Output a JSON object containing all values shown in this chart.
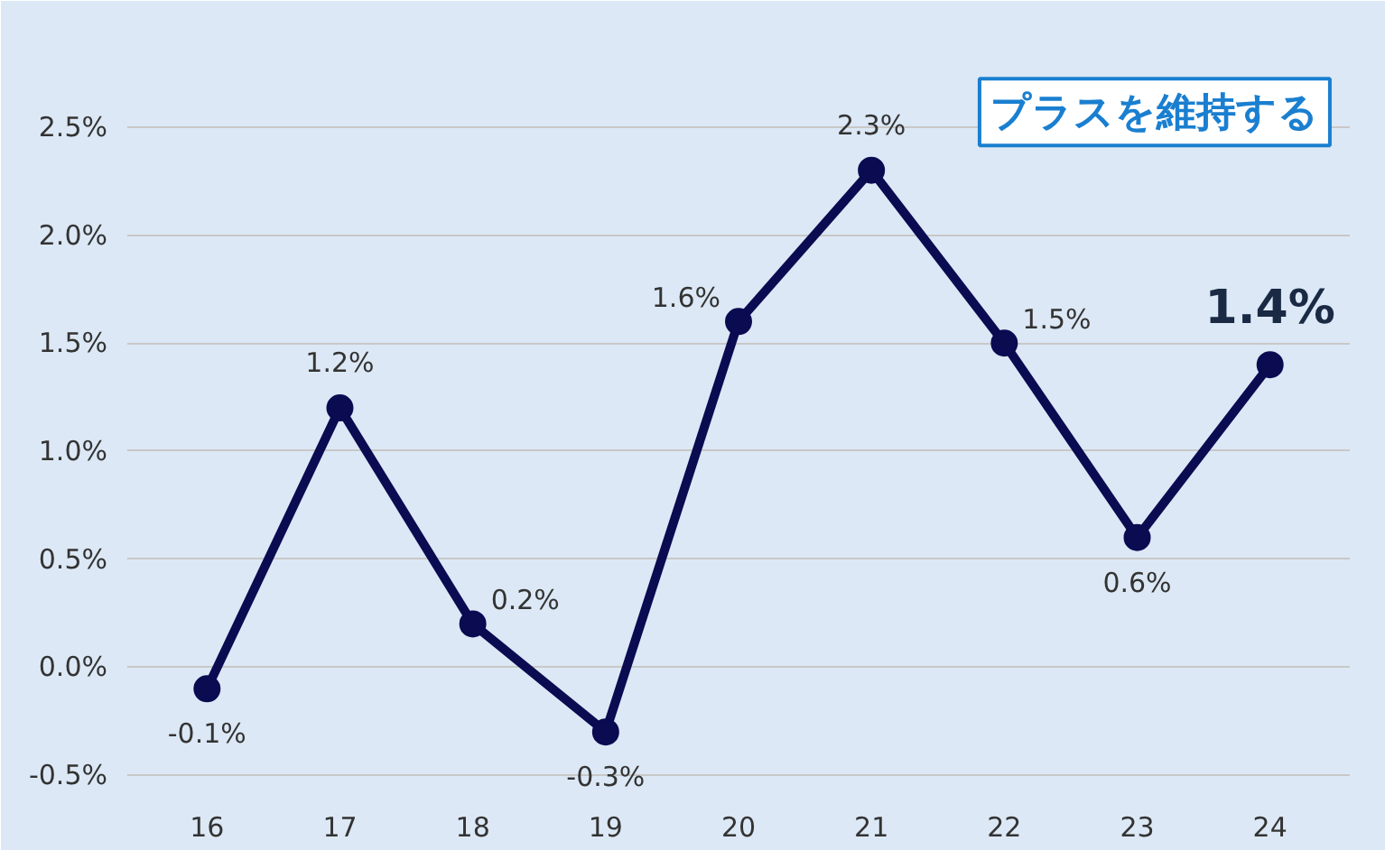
{
  "chart_data": {
    "type": "line",
    "categories": [
      "16",
      "17",
      "18",
      "19",
      "20",
      "21",
      "22",
      "23",
      "24"
    ],
    "series": [
      {
        "color": "#0b0b52",
        "values": [
          -0.1,
          1.2,
          0.2,
          -0.3,
          1.6,
          2.3,
          1.5,
          0.6,
          1.4
        ],
        "value_labels": [
          "-0.1%",
          "1.2%",
          "0.2%",
          "-0.3%",
          "1.6%",
          "2.3%",
          "1.5%",
          "0.6%",
          "1.4%"
        ]
      }
    ],
    "ylim": [
      -0.6,
      2.75
    ],
    "yticks": [
      {
        "value": -0.5,
        "label": "-0.5%"
      },
      {
        "value": 0,
        "label": "0.0%"
      },
      {
        "value": 0.5,
        "label": "0.5%"
      },
      {
        "value": 1,
        "label": "1.0%"
      },
      {
        "value": 1.5,
        "label": "1.5%"
      },
      {
        "value": 2,
        "label": "2.0%"
      },
      {
        "value": 2.5,
        "label": "2.5%"
      }
    ],
    "grid": "y",
    "marker": "circle",
    "line_style": "solid",
    "annotations": [
      "プラスを維持する"
    ]
  }
}
